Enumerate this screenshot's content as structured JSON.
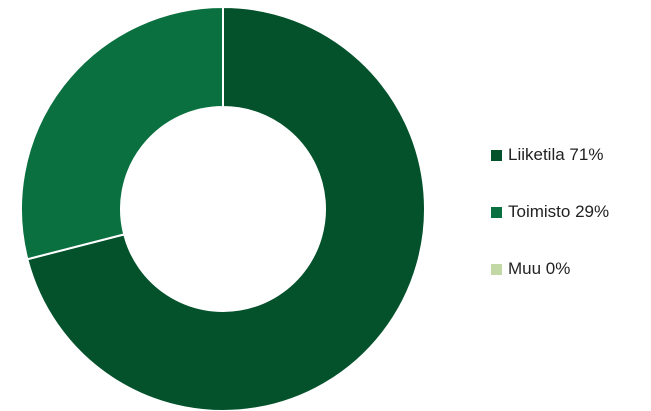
{
  "chart_data": {
    "type": "pie",
    "variant": "donut",
    "title": "",
    "legend_position": "right",
    "slices": [
      {
        "label": "Liiketila",
        "value": 71,
        "display": "Liiketila 71%",
        "color": "#04522c"
      },
      {
        "label": "Toimisto",
        "value": 29,
        "display": "Toimisto 29%",
        "color": "#0a7040"
      },
      {
        "label": "Muu",
        "value": 0,
        "display": "Muu 0%",
        "color": "#c3d9a5"
      }
    ]
  }
}
